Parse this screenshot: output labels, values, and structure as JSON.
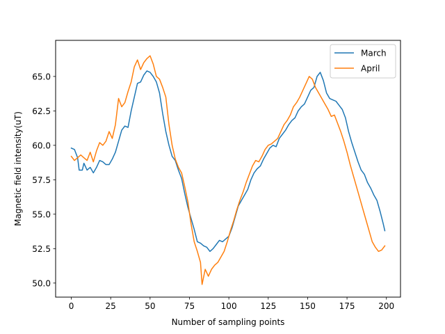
{
  "chart_data": {
    "type": "line",
    "title": "",
    "xlabel": "Number of sampling points",
    "ylabel": "Magnetic field intensity(uT)",
    "xlim": [
      -9.95,
      208.95
    ],
    "ylim": [
      48.98,
      67.62
    ],
    "xticks": [
      0,
      25,
      50,
      75,
      100,
      125,
      150,
      175,
      200
    ],
    "yticks": [
      50.0,
      52.5,
      55.0,
      57.5,
      60.0,
      62.5,
      65.0
    ],
    "xtick_labels": [
      "0",
      "25",
      "50",
      "75",
      "100",
      "125",
      "150",
      "175",
      "200"
    ],
    "ytick_labels": [
      "50.0",
      "52.5",
      "55.0",
      "57.5",
      "60.0",
      "62.5",
      "65.0"
    ],
    "grid": false,
    "legend": {
      "position": "top-right"
    },
    "series": [
      {
        "name": "March",
        "color": "#1f77b4",
        "points": [
          [
            0,
            59.8
          ],
          [
            2,
            59.7
          ],
          [
            4,
            59.1
          ],
          [
            5,
            58.2
          ],
          [
            7,
            58.2
          ],
          [
            8,
            58.7
          ],
          [
            10,
            58.2
          ],
          [
            12,
            58.4
          ],
          [
            14,
            58.0
          ],
          [
            16,
            58.4
          ],
          [
            18,
            58.9
          ],
          [
            20,
            58.8
          ],
          [
            22,
            58.6
          ],
          [
            24,
            58.6
          ],
          [
            26,
            59.0
          ],
          [
            28,
            59.5
          ],
          [
            30,
            60.3
          ],
          [
            32,
            61.1
          ],
          [
            34,
            61.4
          ],
          [
            36,
            61.3
          ],
          [
            38,
            62.5
          ],
          [
            40,
            63.5
          ],
          [
            42,
            64.5
          ],
          [
            44,
            64.6
          ],
          [
            46,
            65.1
          ],
          [
            48,
            65.4
          ],
          [
            50,
            65.3
          ],
          [
            52,
            65.0
          ],
          [
            54,
            64.6
          ],
          [
            56,
            63.8
          ],
          [
            58,
            62.3
          ],
          [
            60,
            61.0
          ],
          [
            62,
            60.0
          ],
          [
            64,
            59.2
          ],
          [
            66,
            58.9
          ],
          [
            68,
            58.2
          ],
          [
            70,
            57.6
          ],
          [
            72,
            56.5
          ],
          [
            74,
            55.5
          ],
          [
            76,
            54.7
          ],
          [
            78,
            53.9
          ],
          [
            80,
            53.0
          ],
          [
            82,
            52.9
          ],
          [
            84,
            52.7
          ],
          [
            86,
            52.6
          ],
          [
            88,
            52.3
          ],
          [
            90,
            52.5
          ],
          [
            92,
            52.8
          ],
          [
            94,
            53.1
          ],
          [
            96,
            53.0
          ],
          [
            98,
            53.2
          ],
          [
            100,
            53.4
          ],
          [
            102,
            54.0
          ],
          [
            104,
            54.8
          ],
          [
            106,
            55.6
          ],
          [
            108,
            56.0
          ],
          [
            110,
            56.4
          ],
          [
            112,
            56.8
          ],
          [
            114,
            57.5
          ],
          [
            116,
            58.0
          ],
          [
            118,
            58.3
          ],
          [
            120,
            58.5
          ],
          [
            122,
            59.0
          ],
          [
            124,
            59.4
          ],
          [
            126,
            59.8
          ],
          [
            128,
            60.0
          ],
          [
            130,
            59.9
          ],
          [
            132,
            60.5
          ],
          [
            134,
            60.8
          ],
          [
            136,
            61.1
          ],
          [
            138,
            61.5
          ],
          [
            140,
            61.8
          ],
          [
            142,
            62.0
          ],
          [
            144,
            62.5
          ],
          [
            146,
            62.8
          ],
          [
            148,
            63.0
          ],
          [
            150,
            63.5
          ],
          [
            152,
            64.0
          ],
          [
            154,
            64.2
          ],
          [
            156,
            65.0
          ],
          [
            158,
            65.3
          ],
          [
            160,
            64.7
          ],
          [
            162,
            63.8
          ],
          [
            164,
            63.4
          ],
          [
            166,
            63.3
          ],
          [
            168,
            63.2
          ],
          [
            170,
            62.9
          ],
          [
            172,
            62.6
          ],
          [
            174,
            62.0
          ],
          [
            176,
            61.0
          ],
          [
            178,
            60.2
          ],
          [
            180,
            59.5
          ],
          [
            182,
            58.8
          ],
          [
            184,
            58.2
          ],
          [
            186,
            57.9
          ],
          [
            188,
            57.3
          ],
          [
            190,
            56.9
          ],
          [
            192,
            56.4
          ],
          [
            194,
            56.0
          ],
          [
            196,
            55.2
          ],
          [
            198,
            54.3
          ],
          [
            199,
            53.8
          ]
        ]
      },
      {
        "name": "April",
        "color": "#ff7f0e",
        "points": [
          [
            0,
            59.2
          ],
          [
            2,
            58.9
          ],
          [
            4,
            59.1
          ],
          [
            6,
            59.3
          ],
          [
            8,
            59.1
          ],
          [
            10,
            58.9
          ],
          [
            12,
            59.5
          ],
          [
            14,
            58.8
          ],
          [
            16,
            59.6
          ],
          [
            18,
            60.2
          ],
          [
            20,
            60.0
          ],
          [
            22,
            60.3
          ],
          [
            24,
            61.0
          ],
          [
            26,
            60.5
          ],
          [
            28,
            61.5
          ],
          [
            30,
            63.4
          ],
          [
            32,
            62.8
          ],
          [
            34,
            63.1
          ],
          [
            36,
            63.9
          ],
          [
            38,
            64.6
          ],
          [
            40,
            65.7
          ],
          [
            42,
            66.2
          ],
          [
            44,
            65.5
          ],
          [
            46,
            66.0
          ],
          [
            48,
            66.3
          ],
          [
            50,
            66.5
          ],
          [
            52,
            65.9
          ],
          [
            54,
            65.0
          ],
          [
            56,
            64.8
          ],
          [
            58,
            64.2
          ],
          [
            60,
            63.5
          ],
          [
            62,
            61.5
          ],
          [
            64,
            60.0
          ],
          [
            66,
            59.0
          ],
          [
            68,
            58.4
          ],
          [
            70,
            58.0
          ],
          [
            72,
            57.0
          ],
          [
            74,
            55.9
          ],
          [
            76,
            54.3
          ],
          [
            78,
            53.0
          ],
          [
            80,
            52.3
          ],
          [
            82,
            51.5
          ],
          [
            83,
            49.9
          ],
          [
            85,
            51.0
          ],
          [
            87,
            50.5
          ],
          [
            89,
            51.0
          ],
          [
            91,
            51.3
          ],
          [
            93,
            51.5
          ],
          [
            95,
            51.9
          ],
          [
            97,
            52.3
          ],
          [
            99,
            53.0
          ],
          [
            101,
            53.8
          ],
          [
            103,
            54.5
          ],
          [
            105,
            55.3
          ],
          [
            107,
            56.0
          ],
          [
            109,
            56.6
          ],
          [
            111,
            57.3
          ],
          [
            113,
            57.9
          ],
          [
            115,
            58.5
          ],
          [
            117,
            58.9
          ],
          [
            119,
            58.8
          ],
          [
            121,
            59.2
          ],
          [
            123,
            59.7
          ],
          [
            125,
            60.0
          ],
          [
            127,
            60.1
          ],
          [
            129,
            60.3
          ],
          [
            131,
            60.5
          ],
          [
            133,
            61.0
          ],
          [
            135,
            61.5
          ],
          [
            137,
            61.8
          ],
          [
            139,
            62.2
          ],
          [
            141,
            62.8
          ],
          [
            143,
            63.1
          ],
          [
            145,
            63.5
          ],
          [
            147,
            64.0
          ],
          [
            149,
            64.5
          ],
          [
            151,
            65.0
          ],
          [
            153,
            64.8
          ],
          [
            155,
            64.2
          ],
          [
            157,
            63.8
          ],
          [
            159,
            63.4
          ],
          [
            161,
            63.0
          ],
          [
            163,
            62.6
          ],
          [
            165,
            62.1
          ],
          [
            167,
            62.2
          ],
          [
            169,
            61.6
          ],
          [
            171,
            61.0
          ],
          [
            173,
            60.3
          ],
          [
            175,
            59.5
          ],
          [
            177,
            58.6
          ],
          [
            179,
            57.8
          ],
          [
            181,
            57.0
          ],
          [
            183,
            56.2
          ],
          [
            185,
            55.4
          ],
          [
            187,
            54.6
          ],
          [
            189,
            53.8
          ],
          [
            191,
            53.0
          ],
          [
            193,
            52.6
          ],
          [
            195,
            52.3
          ],
          [
            197,
            52.4
          ],
          [
            199,
            52.7
          ]
        ]
      }
    ]
  }
}
